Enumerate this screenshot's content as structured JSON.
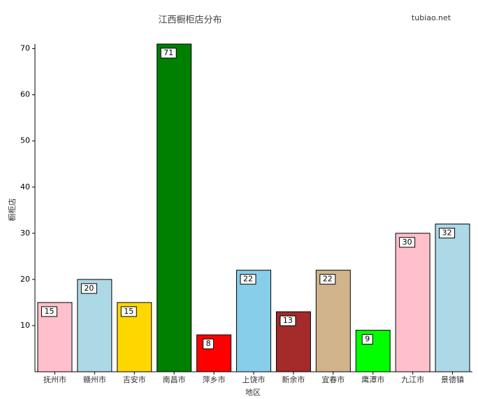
{
  "chart_data": {
    "type": "bar",
    "title": "江西橱柜店分布",
    "watermark": "tubiao.net",
    "y_label": "橱柜店",
    "x_label": "地区",
    "categories": [
      "抚州市",
      "赣州市",
      "吉安市",
      "南昌市",
      "萍乡市",
      "上饶市",
      "新余市",
      "宜春市",
      "鹰潭市",
      "九江市",
      "景德镇"
    ],
    "values": [
      15,
      20,
      15,
      71,
      8,
      22,
      13,
      22,
      9,
      30,
      32
    ],
    "colors": [
      "#ffc0cb",
      "#add8e6",
      "#ffd700",
      "#008000",
      "#ff0000",
      "#87ceeb",
      "#a52a2a",
      "#d2b48c",
      "#00ff00",
      "#ffc0cb",
      "#add8e6"
    ],
    "ylim": [
      0,
      71
    ],
    "yticks": [
      10,
      20,
      30,
      40,
      50,
      60,
      70
    ],
    "grid": false
  }
}
